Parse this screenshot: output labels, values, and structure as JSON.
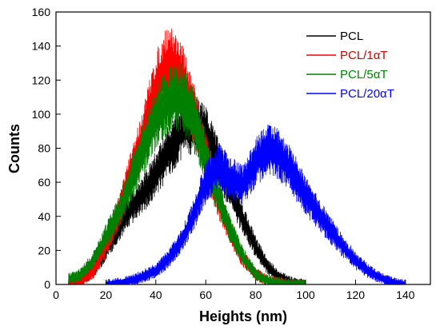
{
  "chart_data": {
    "type": "line",
    "xlabel": "Heights (nm)",
    "ylabel": "Counts",
    "xlim": [
      0,
      150
    ],
    "ylim": [
      0,
      160
    ],
    "x_ticks": [
      0,
      20,
      40,
      60,
      80,
      100,
      120,
      140
    ],
    "y_ticks": [
      0,
      20,
      40,
      60,
      80,
      100,
      120,
      140,
      160
    ],
    "grid": false,
    "legend_position": "top-right",
    "series": [
      {
        "name": "PCL",
        "color": "#000000",
        "x": [
          5,
          10,
          15,
          20,
          25,
          30,
          35,
          40,
          45,
          50,
          55,
          60,
          65,
          70,
          75,
          80,
          85,
          90,
          95,
          100
        ],
        "values": [
          0,
          2,
          8,
          20,
          33,
          45,
          53,
          65,
          78,
          90,
          95,
          88,
          72,
          55,
          38,
          22,
          10,
          4,
          1,
          0
        ]
      },
      {
        "name": "PCL/1αT",
        "color": "#ff0000",
        "x": [
          5,
          10,
          15,
          20,
          25,
          30,
          35,
          40,
          45,
          50,
          55,
          60,
          65,
          70,
          75,
          80,
          85,
          90,
          95,
          100
        ],
        "values": [
          0,
          2,
          8,
          22,
          42,
          65,
          88,
          115,
          130,
          122,
          100,
          75,
          50,
          30,
          15,
          6,
          2,
          1,
          0,
          0
        ]
      },
      {
        "name": "PCL/5αT",
        "color": "#008000",
        "x": [
          5,
          10,
          15,
          20,
          25,
          30,
          35,
          40,
          45,
          50,
          55,
          60,
          65,
          70,
          75,
          80,
          85,
          90,
          95,
          100
        ],
        "values": [
          3,
          6,
          14,
          28,
          42,
          60,
          80,
          98,
          108,
          110,
          98,
          75,
          52,
          32,
          16,
          6,
          2,
          1,
          0,
          0
        ]
      },
      {
        "name": "PCL/20αT",
        "color": "#0000ff",
        "x": [
          20,
          30,
          40,
          45,
          50,
          55,
          60,
          65,
          70,
          75,
          80,
          85,
          90,
          95,
          100,
          105,
          110,
          115,
          120,
          125,
          130,
          135,
          140
        ],
        "values": [
          0,
          2,
          8,
          15,
          25,
          40,
          60,
          70,
          62,
          58,
          72,
          80,
          75,
          65,
          52,
          42,
          32,
          22,
          14,
          8,
          4,
          1,
          0
        ]
      }
    ]
  }
}
